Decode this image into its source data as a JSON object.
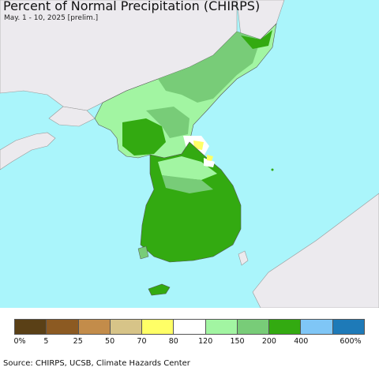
{
  "title": "Percent of Normal Precipitation (CHIRPS)",
  "subtitle": "May. 1 - 10, 2025 [prelim.]",
  "source": "Source: CHIRPS, UCSB, Climate Hazards Center",
  "colors": {
    "ocean": "#aaf5fb",
    "land_outside": "#eceaee",
    "border": "#555555"
  },
  "legend": {
    "labels": [
      "0%",
      "5",
      "25",
      "50",
      "70",
      "80",
      "120",
      "150",
      "200",
      "400",
      "600%"
    ],
    "colors": [
      "#5a4016",
      "#8c5a22",
      "#c38c4a",
      "#d7c488",
      "#ffff66",
      "#ffffff",
      "#a2f5a2",
      "#78cc78",
      "#33aa11",
      "#7fc6f6",
      "#1e7ab8"
    ]
  }
}
